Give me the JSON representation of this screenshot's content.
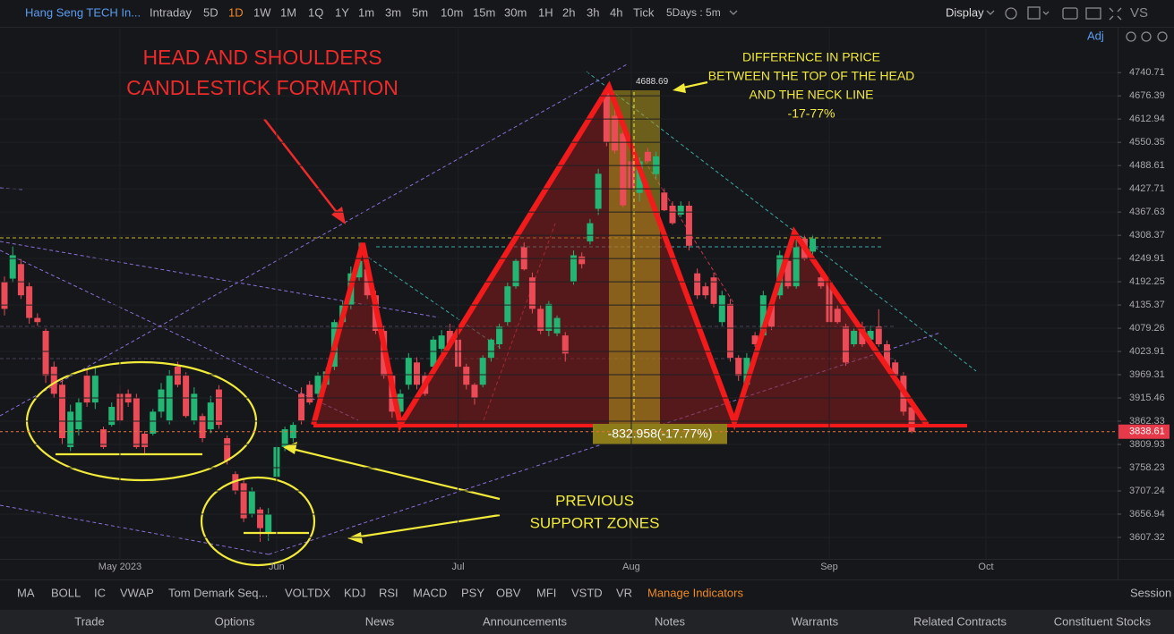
{
  "toolbar": {
    "symbol": "Hang Seng TECH In...",
    "timeframes": [
      "Intraday",
      "5D",
      "1D",
      "1W",
      "1M",
      "1Q",
      "1Y",
      "1m",
      "3m",
      "5m",
      "10m",
      "15m",
      "30m",
      "1H",
      "2h",
      "3h",
      "4h",
      "Tick"
    ],
    "active": "1D",
    "range": "5Days : 5m",
    "display": "Display",
    "vs": "VS",
    "adj": "Adj"
  },
  "chart_data": {
    "type": "candlestick",
    "log_scale": true,
    "grid": true,
    "up_color": "#22b573",
    "down_color": "#ea4b56",
    "ylim": [
      3562,
      4870
    ],
    "yticks": [
      4740.71,
      4676.39,
      4612.94,
      4550.35,
      4488.61,
      4427.71,
      4367.63,
      4308.37,
      4249.91,
      4192.25,
      4135.37,
      4079.26,
      4023.91,
      3969.31,
      3915.46,
      3862.33,
      3809.93,
      3758.23,
      3707.24,
      3656.94,
      3607.32
    ],
    "categories": [
      null,
      null,
      null,
      null,
      null,
      null,
      null,
      null,
      null,
      null,
      null,
      null,
      null,
      null,
      "May 2023",
      null,
      null,
      null,
      null,
      null,
      null,
      null,
      null,
      null,
      null,
      null,
      null,
      null,
      null,
      null,
      null,
      null,
      null,
      "Jun",
      null,
      null,
      null,
      null,
      null,
      null,
      null,
      null,
      null,
      null,
      null,
      null,
      null,
      null,
      null,
      null,
      null,
      null,
      null,
      null,
      null,
      "Jul",
      null,
      null,
      null,
      null,
      null,
      null,
      null,
      null,
      null,
      null,
      null,
      null,
      null,
      null,
      null,
      null,
      null,
      null,
      null,
      null,
      "Aug",
      null,
      null,
      null,
      null,
      null,
      null,
      null,
      null,
      null,
      null,
      null,
      null,
      null,
      null,
      null,
      null,
      null,
      null,
      null,
      null,
      null,
      null,
      null,
      "Sep",
      null,
      null,
      null,
      null,
      null,
      null,
      null,
      null,
      null,
      null,
      null,
      null,
      null,
      null,
      null,
      null,
      null,
      null,
      "Oct"
    ],
    "candles": [
      [
        4192,
        4205,
        4110,
        4126
      ],
      [
        4200,
        4280,
        4190,
        4258
      ],
      [
        4236,
        4250,
        4150,
        4159
      ],
      [
        4181,
        4190,
        4090,
        4104
      ],
      [
        4104,
        4115,
        4085,
        4094
      ],
      [
        4073,
        4080,
        3950,
        3967
      ],
      [
        3988,
        4000,
        3915,
        3925
      ],
      [
        3946,
        3960,
        3810,
        3824
      ],
      [
        3804,
        3900,
        3795,
        3884
      ],
      [
        3844,
        3915,
        3830,
        3905
      ],
      [
        3967,
        3985,
        3895,
        3905
      ],
      [
        3905,
        3990,
        3890,
        3967
      ],
      [
        3844,
        3850,
        3800,
        3804
      ],
      [
        3854,
        3905,
        3850,
        3895
      ],
      [
        3925,
        3945,
        3855,
        3864
      ],
      [
        3925,
        3935,
        3895,
        3905
      ],
      [
        3915,
        3925,
        3800,
        3804
      ],
      [
        3834,
        3840,
        3790,
        3804
      ],
      [
        3834,
        3890,
        3830,
        3884
      ],
      [
        3884,
        3950,
        3870,
        3935
      ],
      [
        3864,
        3980,
        3855,
        3967
      ],
      [
        3988,
        4000,
        3940,
        3946
      ],
      [
        3967,
        3975,
        3870,
        3874
      ],
      [
        3864,
        3940,
        3855,
        3925
      ],
      [
        3874,
        3880,
        3815,
        3824
      ],
      [
        3844,
        3920,
        3835,
        3905
      ],
      [
        3935,
        3945,
        3845,
        3854
      ],
      [
        3824,
        3830,
        3765,
        3774
      ],
      [
        3744,
        3750,
        3700,
        3707
      ],
      [
        3724,
        3735,
        3640,
        3648
      ],
      [
        3657,
        3715,
        3650,
        3707
      ],
      [
        3667,
        3672,
        3598,
        3627
      ],
      [
        3617,
        3670,
        3600,
        3657
      ],
      [
        3738,
        3810,
        3730,
        3804
      ],
      [
        3804,
        3850,
        3795,
        3844
      ],
      [
        3824,
        3860,
        3815,
        3854
      ],
      [
        3925,
        3940,
        3855,
        3864
      ],
      [
        3946,
        3955,
        3900,
        3905
      ],
      [
        3925,
        3975,
        3915,
        3967
      ],
      [
        3946,
        3985,
        3940,
        3977
      ],
      [
        3988,
        4100,
        3980,
        4094
      ],
      [
        4094,
        4145,
        4085,
        4135
      ],
      [
        4135,
        4230,
        4125,
        4213
      ],
      [
        4203,
        4290,
        4195,
        4244
      ],
      [
        4223,
        4240,
        4150,
        4159
      ],
      [
        4159,
        4170,
        4065,
        4073
      ],
      [
        4073,
        4085,
        3960,
        3967
      ],
      [
        3967,
        3975,
        3870,
        3884
      ],
      [
        3884,
        3935,
        3875,
        3925
      ],
      [
        3946,
        4020,
        3935,
        4009
      ],
      [
        3998,
        4010,
        3935,
        3946
      ],
      [
        3967,
        3975,
        3920,
        3925
      ],
      [
        3988,
        4060,
        3980,
        4052
      ],
      [
        4030,
        4075,
        4020,
        4062
      ],
      [
        4073,
        4090,
        4035,
        4041
      ],
      [
        4052,
        4060,
        3980,
        3988
      ],
      [
        3988,
        3995,
        3935,
        3946
      ],
      [
        3946,
        3950,
        3900,
        3915
      ],
      [
        3946,
        4015,
        3940,
        4009
      ],
      [
        4009,
        4055,
        4000,
        4052
      ],
      [
        4041,
        4090,
        4030,
        4083
      ],
      [
        4094,
        4190,
        4085,
        4181
      ],
      [
        4181,
        4250,
        4175,
        4244
      ],
      [
        4278,
        4290,
        4220,
        4223
      ],
      [
        4203,
        4215,
        4115,
        4126
      ],
      [
        4126,
        4135,
        4065,
        4073
      ],
      [
        4073,
        4145,
        4060,
        4138
      ],
      [
        4067,
        4110,
        4060,
        4104
      ],
      [
        4062,
        4070,
        4000,
        4019
      ],
      [
        4192,
        4270,
        4185,
        4258
      ],
      [
        4255,
        4265,
        4225,
        4236
      ],
      [
        4293,
        4350,
        4285,
        4339
      ],
      [
        4376,
        4480,
        4360,
        4467
      ],
      [
        4693,
        4704,
        4540,
        4550
      ],
      [
        4622,
        4640,
        4520,
        4528
      ],
      [
        4574,
        4585,
        4380,
        4385
      ],
      [
        4500,
        4510,
        4420,
        4428
      ],
      [
        4417,
        4510,
        4395,
        4500
      ],
      [
        4525,
        4535,
        4495,
        4500
      ],
      [
        4466,
        4525,
        4455,
        4513
      ],
      [
        4418,
        4430,
        4370,
        4372
      ],
      [
        4384,
        4395,
        4335,
        4339
      ],
      [
        4361,
        4395,
        4355,
        4384
      ],
      [
        4384,
        4395,
        4270,
        4282
      ],
      [
        4213,
        4225,
        4150,
        4159
      ],
      [
        4181,
        4190,
        4150,
        4159
      ],
      [
        4203,
        4215,
        4130,
        4138
      ],
      [
        4094,
        4170,
        4085,
        4159
      ],
      [
        4138,
        4150,
        4000,
        4009
      ],
      [
        4009,
        4015,
        3955,
        3967
      ],
      [
        3946,
        4020,
        3935,
        4009
      ],
      [
        4062,
        4070,
        4035,
        4041
      ],
      [
        4062,
        4170,
        4055,
        4159
      ],
      [
        4138,
        4150,
        4075,
        4083
      ],
      [
        4159,
        4270,
        4150,
        4258
      ],
      [
        4244,
        4255,
        4175,
        4181
      ],
      [
        4181,
        4300,
        4175,
        4278
      ],
      [
        4300,
        4310,
        4245,
        4248
      ],
      [
        4267,
        4310,
        4260,
        4300
      ],
      [
        4203,
        4215,
        4175,
        4181
      ],
      [
        4192,
        4200,
        4090,
        4094
      ],
      [
        4126,
        4135,
        4090,
        4094
      ],
      [
        4083,
        4090,
        3990,
        3998
      ],
      [
        4041,
        4080,
        4035,
        4073
      ],
      [
        4083,
        4095,
        4035,
        4041
      ],
      [
        4052,
        4085,
        4045,
        4073
      ],
      [
        4083,
        4125,
        4035,
        4041
      ],
      [
        4041,
        4050,
        3980,
        3988
      ],
      [
        3998,
        4005,
        3960,
        3967
      ],
      [
        3967,
        3975,
        3875,
        3884
      ],
      [
        3894,
        3900,
        3835,
        3839
      ],
      null,
      null,
      null,
      null,
      null,
      null,
      null,
      null
    ],
    "last_price": 3838.61,
    "head_label": 4688.69,
    "change_label": "-832.958(-17.77%)",
    "annotations": {
      "pattern": [
        "HEAD AND SHOULDERS",
        "CANDLESTICK FORMATION"
      ],
      "difference": [
        "DIFFERENCE IN PRICE",
        "BETWEEN THE TOP OF THE HEAD",
        "AND THE NECK LINE",
        "-17-77%"
      ],
      "support": [
        "PREVIOUS",
        "SUPPORT ZONES"
      ]
    }
  },
  "indicators": {
    "items": [
      "MA",
      "BOLL",
      "IC",
      "VWAP",
      "Tom Demark Seq...",
      "VOLTDX",
      "KDJ",
      "RSI",
      "MACD",
      "PSY",
      "OBV",
      "MFI",
      "VSTD",
      "VR"
    ],
    "manage": "Manage Indicators",
    "session": "Session"
  },
  "tabs": [
    "Trade",
    "Options",
    "News",
    "Announcements",
    "Notes",
    "Warrants",
    "Related Contracts",
    "Constituent Stocks"
  ]
}
